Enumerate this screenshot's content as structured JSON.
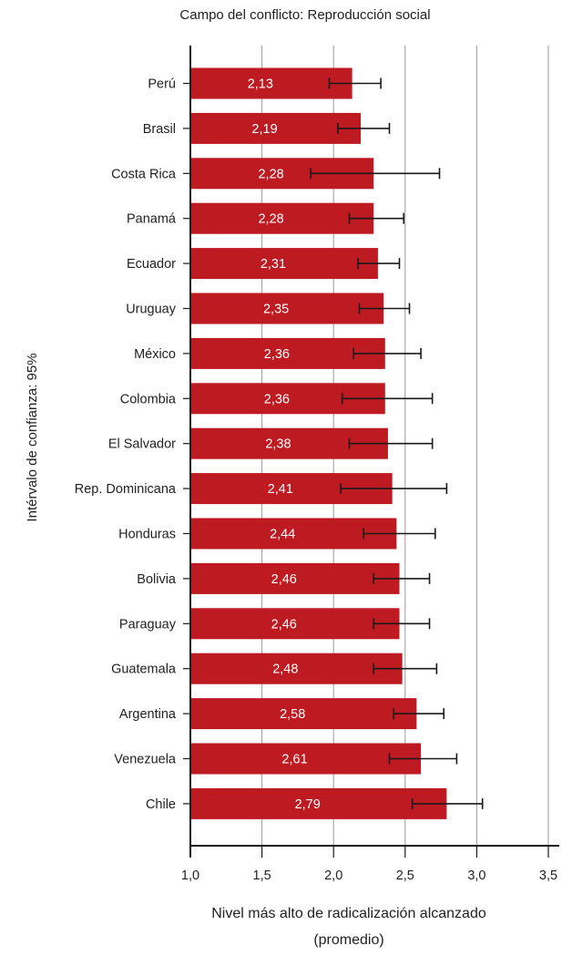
{
  "chart_data": {
    "type": "bar",
    "orientation": "horizontal",
    "title": "Campo del conflicto: Reproducción social",
    "xlabel_lines": [
      "Nivel más alto de radicalización alcanzado",
      "(promedio)"
    ],
    "ylabel": "Intérvalo de confianza: 95%",
    "xlim": [
      1.0,
      3.5
    ],
    "x_ticks": [
      1.0,
      1.5,
      2.0,
      2.5,
      3.0,
      3.5
    ],
    "x_tick_labels": [
      "1,0",
      "1,5",
      "2,0",
      "2,5",
      "3,0",
      "3,5"
    ],
    "grid": "vertical",
    "bar_color": "#BE1A22",
    "categories": [
      "Perú",
      "Brasil",
      "Costa Rica",
      "Panamá",
      "Ecuador",
      "Uruguay",
      "México",
      "Colombia",
      "El Salvador",
      "Rep. Dominicana",
      "Honduras",
      "Bolivia",
      "Paraguay",
      "Guatemala",
      "Argentina",
      "Venezuela",
      "Chile"
    ],
    "values": [
      2.13,
      2.19,
      2.28,
      2.28,
      2.31,
      2.35,
      2.36,
      2.36,
      2.38,
      2.41,
      2.44,
      2.46,
      2.46,
      2.48,
      2.58,
      2.61,
      2.79
    ],
    "value_labels": [
      "2,13",
      "2,19",
      "2,28",
      "2,28",
      "2,31",
      "2,35",
      "2,36",
      "2,36",
      "2,38",
      "2,41",
      "2,44",
      "2,46",
      "2,46",
      "2,48",
      "2,58",
      "2,61",
      "2,79"
    ],
    "ci_low": [
      1.97,
      2.03,
      1.84,
      2.11,
      2.17,
      2.18,
      2.14,
      2.06,
      2.11,
      2.05,
      2.21,
      2.28,
      2.28,
      2.28,
      2.42,
      2.39,
      2.55
    ],
    "ci_high": [
      2.33,
      2.39,
      2.74,
      2.49,
      2.46,
      2.53,
      2.61,
      2.69,
      2.69,
      2.79,
      2.71,
      2.67,
      2.67,
      2.72,
      2.77,
      2.86,
      3.04
    ]
  }
}
